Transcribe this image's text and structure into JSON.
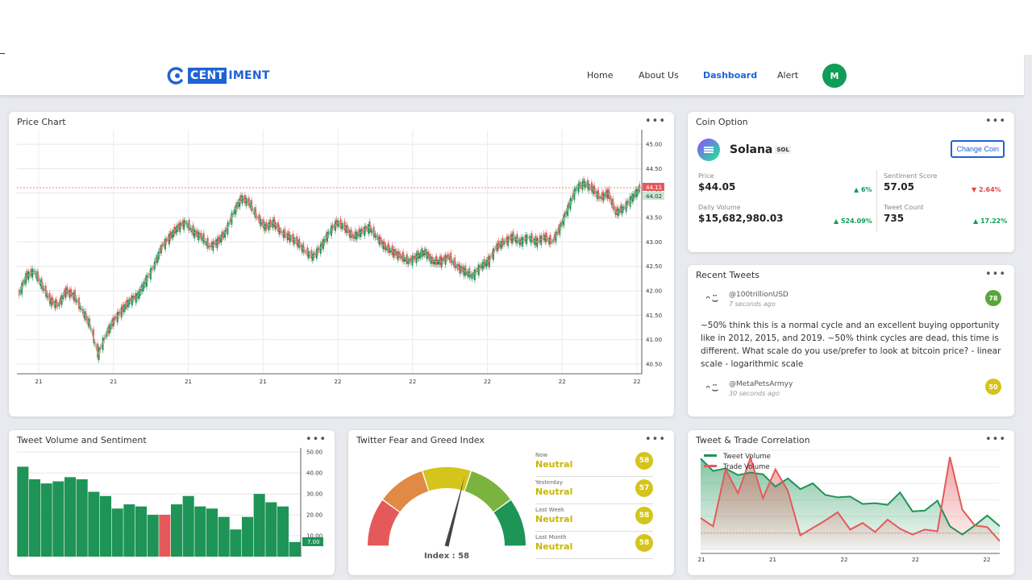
{
  "nav": {
    "logo_box": "CENT",
    "logo_rest": "IMENT",
    "links": [
      "Home",
      "About Us",
      "Dashboard",
      "Alert"
    ],
    "active": "Dashboard",
    "avatar": "M"
  },
  "price_chart": {
    "title": "Price Chart",
    "menu": "•••",
    "y_ticks": [
      "45.00",
      "44.50",
      "44.00",
      "43.50",
      "43.00",
      "42.50",
      "42.00",
      "41.50",
      "41.00",
      "40.50"
    ],
    "x_ticks": [
      "21",
      "21",
      "21",
      "21",
      "22",
      "22",
      "22",
      "22",
      "22"
    ],
    "last_price_tag": "44.11",
    "prev_price_tag": "44.02"
  },
  "coin": {
    "title": "Coin Option",
    "menu": "•••",
    "name": "Solana",
    "symbol": "SOL",
    "change_button": "Change Coin",
    "price_label": "Price",
    "price": "$44.05",
    "price_change": "6%",
    "sentiment_label": "Sentiment Score",
    "sentiment": "57.05",
    "sentiment_change": "2.64%",
    "volume_label": "Daily Volume",
    "volume": "$15,682,980.03",
    "volume_change": "524.09%",
    "tweet_count_label": "Tweet Count",
    "tweet_count": "735",
    "tweet_count_change": "17.22%",
    "colors": {
      "up": "#0f9d58",
      "down": "#e04848"
    }
  },
  "tweets": {
    "title": "Recent Tweets",
    "menu": "•••",
    "items": [
      {
        "user": "@100trillionUSD",
        "time": "7 seconds ago",
        "score": "78",
        "score_color": "#5aa63a",
        "text": "~50% think this is a normal cycle and an excellent buying opportunity like in 2012, 2015, and 2019. ~50% think cycles are dead, this time is different. What scale do you use/prefer to look at bitcoin price? - linear scale - logarithmic scale"
      },
      {
        "user": "@MetaPetsArmyy",
        "time": "30 seconds ago",
        "score": "50",
        "score_color": "#d4c41c",
        "text": ""
      }
    ]
  },
  "volume_chart": {
    "title": "Tweet Volume and Sentiment",
    "menu": "•••",
    "y_ticks": [
      "50.00",
      "40.00",
      "30.00",
      "20.00",
      "10.00"
    ],
    "last_value_tag": "7.00"
  },
  "fear_greed": {
    "title": "Twitter Fear and Greed Index",
    "menu": "•••",
    "index_label": "Index : 58",
    "index_value": 58,
    "rows": [
      {
        "period": "Now",
        "label": "Neutral",
        "score": "58"
      },
      {
        "period": "Yesterday",
        "label": "Neutral",
        "score": "57"
      },
      {
        "period": "Last Week",
        "label": "Neutral",
        "score": "58"
      },
      {
        "period": "Last Month",
        "label": "Neutral",
        "score": "58"
      }
    ],
    "gauge_colors": [
      "#e45a5a",
      "#e08a45",
      "#d4c41c",
      "#7ab33e",
      "#1e9457"
    ]
  },
  "correlation": {
    "title": "Tweet & Trade Correlation",
    "menu": "•••",
    "legend": [
      "Tweet Volume",
      "Trade Volume"
    ],
    "x_ticks": [
      "21",
      "21",
      "22",
      "22",
      "22"
    ],
    "colors": {
      "tweet": "#1e9457",
      "trade": "#e45a5a"
    }
  },
  "chart_data": [
    {
      "type": "line",
      "title": "Price Chart",
      "xlabel": "",
      "ylabel": "",
      "ylim": [
        40.3,
        45.3
      ],
      "x_tick_labels": [
        "21",
        "21",
        "21",
        "21",
        "22",
        "22",
        "22",
        "22",
        "22"
      ],
      "series": [
        {
          "values": [
            41.9,
            42.3,
            42.4,
            42.1,
            41.8,
            41.7,
            42.0,
            41.9,
            41.6,
            41.3,
            40.7,
            41.1,
            41.4,
            41.6,
            41.8,
            41.9,
            42.2,
            42.5,
            42.9,
            43.1,
            43.3,
            43.4,
            43.2,
            43.1,
            42.9,
            43.0,
            43.2,
            43.6,
            43.9,
            43.8,
            43.5,
            43.3,
            43.4,
            43.2,
            43.1,
            43.0,
            42.8,
            42.7,
            42.9,
            43.2,
            43.4,
            43.3,
            43.1,
            43.2,
            43.3,
            43.1,
            42.9,
            42.8,
            42.7,
            42.6,
            42.7,
            42.8,
            42.6,
            42.6,
            42.7,
            42.5,
            42.4,
            42.3,
            42.5,
            42.6,
            42.9,
            43.0,
            43.1,
            43.0,
            43.1,
            43.0,
            43.1,
            43.0,
            43.3,
            43.7,
            44.1,
            44.2,
            44.1,
            43.9,
            44.0,
            43.6,
            43.7,
            43.9,
            44.1
          ]
        }
      ]
    },
    {
      "type": "bar",
      "title": "Tweet Volume and Sentiment",
      "xlabel": "",
      "ylabel": "",
      "ylim": [
        0,
        52
      ],
      "series": [
        {
          "values": [
            43,
            37,
            35,
            36,
            38,
            37,
            31,
            29,
            23,
            25,
            24,
            20,
            20,
            25,
            29,
            24,
            23,
            19,
            13,
            19,
            30,
            26,
            24,
            7
          ]
        }
      ],
      "bar_colors": [
        "#1e9457",
        "#1e9457",
        "#1e9457",
        "#1e9457",
        "#1e9457",
        "#1e9457",
        "#1e9457",
        "#1e9457",
        "#1e9457",
        "#1e9457",
        "#1e9457",
        "#1e9457",
        "#e45a5a",
        "#1e9457",
        "#1e9457",
        "#1e9457",
        "#1e9457",
        "#1e9457",
        "#1e9457",
        "#1e9457",
        "#1e9457",
        "#1e9457",
        "#1e9457",
        "#1e9457"
      ]
    },
    {
      "type": "area",
      "title": "Tweet & Trade Correlation",
      "xlabel": "",
      "ylabel": "",
      "ylim": [
        0,
        12
      ],
      "series": [
        {
          "name": "Tweet Volume",
          "values": [
            11,
            9.5,
            9.8,
            9,
            9.3,
            9.1,
            7.6,
            8.6,
            7.3,
            8,
            6.6,
            6.3,
            6.4,
            5.5,
            5.6,
            5.4,
            6.9,
            4.6,
            4.7,
            5.9,
            2.8,
            1.8,
            2.9,
            4.1,
            2.8
          ]
        },
        {
          "name": "Trade Volume",
          "values": [
            3.8,
            2.8,
            9.7,
            6.8,
            11.1,
            6.2,
            9.7,
            7.1,
            1.7,
            2.6,
            3.5,
            4.5,
            2.4,
            3.2,
            2.1,
            3.6,
            2.5,
            1.8,
            2.4,
            2.2,
            11.2,
            4.8,
            2.9,
            2.7,
            1
          ]
        }
      ],
      "x_tick_labels": [
        "21",
        "21",
        "22",
        "22",
        "22"
      ]
    },
    {
      "type": "gauge",
      "title": "Twitter Fear and Greed Index",
      "value": 58,
      "range": [
        0,
        100
      ]
    }
  ]
}
